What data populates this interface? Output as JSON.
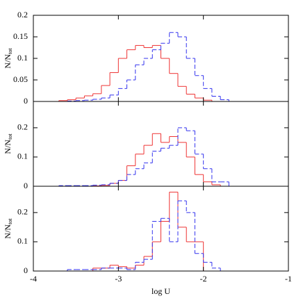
{
  "chart_data": [
    {
      "type": "histogram",
      "bins": [
        -3.7,
        -3.6,
        -3.5,
        -3.4,
        -3.3,
        -3.2,
        -3.1,
        -3.0,
        -2.9,
        -2.8,
        -2.7,
        -2.6,
        -2.5,
        -2.4,
        -2.3,
        -2.2,
        -2.1,
        -2.0,
        -1.9,
        -1.8,
        -1.7
      ],
      "series": [
        {
          "color": "#ee3333",
          "dashed": false,
          "values": [
            0.002,
            0.004,
            0.008,
            0.013,
            0.018,
            0.037,
            0.067,
            0.1,
            0.12,
            0.13,
            0.125,
            0.13,
            0.1,
            0.065,
            0.035,
            0.017,
            0.008,
            0.003,
            0,
            0
          ]
        },
        {
          "color": "#3333ee",
          "dashed": true,
          "values": [
            0,
            0.001,
            0.002,
            0.003,
            0.005,
            0.008,
            0.015,
            0.03,
            0.05,
            0.085,
            0.1,
            0.12,
            0.135,
            0.16,
            0.15,
            0.1,
            0.06,
            0.03,
            0.012,
            0.004
          ]
        }
      ],
      "xlim": [
        -4,
        -1
      ],
      "xticks": [
        -4,
        -3,
        -2,
        -1
      ],
      "xtick_labels": false,
      "ylim": [
        0,
        0.2
      ],
      "yticks": [
        0,
        0.05,
        0.1,
        0.15,
        0.2
      ],
      "ylabel": "N/N",
      "ylabel_sub": "tot"
    },
    {
      "type": "histogram",
      "bins": [
        -3.7,
        -3.6,
        -3.5,
        -3.4,
        -3.3,
        -3.2,
        -3.1,
        -3.0,
        -2.9,
        -2.8,
        -2.7,
        -2.6,
        -2.5,
        -2.4,
        -2.3,
        -2.2,
        -2.1,
        -2.0,
        -1.9,
        -1.8,
        -1.7
      ],
      "series": [
        {
          "color": "#ee3333",
          "dashed": false,
          "values": [
            0,
            0,
            0,
            0,
            0.001,
            0.003,
            0.01,
            0.02,
            0.07,
            0.11,
            0.14,
            0.18,
            0.15,
            0.17,
            0.15,
            0.1,
            0.04,
            0.015,
            0.005,
            0
          ]
        },
        {
          "color": "#3333ee",
          "dashed": true,
          "values": [
            0.002,
            0.002,
            0.002,
            0.002,
            0.004,
            0.005,
            0.01,
            0.02,
            0.04,
            0.06,
            0.08,
            0.12,
            0.13,
            0.14,
            0.2,
            0.19,
            0.11,
            0.06,
            0.015,
            0.015
          ]
        }
      ],
      "xlim": [
        -4,
        -1
      ],
      "xticks": [
        -4,
        -3,
        -2,
        -1
      ],
      "xtick_labels": false,
      "ylim": [
        0,
        0.29
      ],
      "yticks": [
        0,
        0.1,
        0.2
      ],
      "ylabel": "N/N",
      "ylabel_sub": "tot"
    },
    {
      "type": "histogram",
      "bins": [
        -3.7,
        -3.6,
        -3.5,
        -3.4,
        -3.3,
        -3.2,
        -3.1,
        -3.0,
        -2.9,
        -2.8,
        -2.7,
        -2.6,
        -2.5,
        -2.4,
        -2.3,
        -2.2,
        -2.1,
        -2.0,
        -1.9,
        -1.8,
        -1.7
      ],
      "series": [
        {
          "color": "#ee3333",
          "dashed": false,
          "values": [
            0,
            0,
            0,
            0,
            0.01,
            0.01,
            0.02,
            0.015,
            0.01,
            0.02,
            0.05,
            0.1,
            0.17,
            0.27,
            0.15,
            0.1,
            0.1,
            0,
            0,
            0
          ]
        },
        {
          "color": "#3333ee",
          "dashed": true,
          "values": [
            0,
            0.005,
            0.005,
            0.005,
            0.005,
            0.01,
            0.01,
            0.01,
            0.005,
            0.03,
            0.04,
            0.17,
            0.18,
            0.1,
            0.24,
            0.2,
            0.06,
            0.03,
            0.01,
            0
          ]
        }
      ],
      "xlim": [
        -4,
        -1
      ],
      "xticks": [
        -4,
        -3,
        -2,
        -1
      ],
      "xtick_labels": true,
      "ylim": [
        0,
        0.29
      ],
      "yticks": [
        0,
        0.1,
        0.2
      ],
      "ylabel": "N/N",
      "ylabel_sub": "tot",
      "xlabel": "log U"
    }
  ]
}
